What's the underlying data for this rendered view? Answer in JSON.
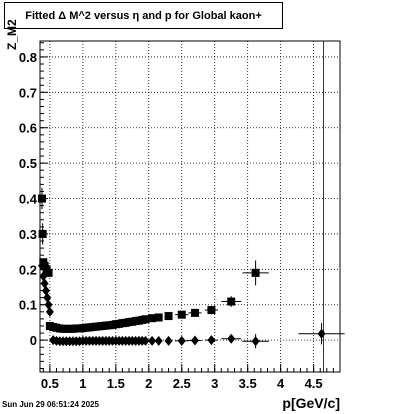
{
  "title": "Fitted Δ M^2 versus η and p for Global kaon+",
  "timestamp": "Sun Jun 29 06:51:24 2025",
  "chart_data": {
    "type": "scatter",
    "title": "Fitted Δ M^2 versus η and p for Global kaon+",
    "xlabel": "p[GeV/c]",
    "ylabel": "Z_M2",
    "xlim": [
      0.35,
      4.9
    ],
    "ylim": [
      -0.09,
      0.845
    ],
    "grid": true,
    "x_ticks": [
      0.5,
      1,
      1.5,
      2,
      2.5,
      3,
      3.5,
      4,
      4.5
    ],
    "x_tick_labels": [
      "0.5",
      "1",
      "1.5",
      "2",
      "2.5",
      "3",
      "3.5",
      "4",
      "4.5"
    ],
    "y_ticks": [
      0,
      0.1,
      0.2,
      0.3,
      0.4,
      0.5,
      0.6,
      0.7,
      0.8
    ],
    "y_tick_labels": [
      "0",
      "0.1",
      "0.2",
      "0.3",
      "0.4",
      "0.5",
      "0.6",
      "0.7",
      "0.8"
    ],
    "series": [
      {
        "marker": "square",
        "points": [
          [
            0.38,
            0.4,
            0.01,
            0.03
          ],
          [
            0.39,
            0.3,
            0.01,
            0.03
          ],
          [
            0.4,
            0.22,
            0.01,
            0.01
          ],
          [
            0.42,
            0.21,
            0.01,
            0.01
          ],
          [
            0.45,
            0.2,
            0.01,
            0.01
          ],
          [
            0.48,
            0.19,
            0.01,
            0.01
          ],
          [
            0.5,
            0.04,
            0.02,
            0.005
          ],
          [
            0.55,
            0.037,
            0.025,
            0.004
          ],
          [
            0.6,
            0.035,
            0.025,
            0.004
          ],
          [
            0.65,
            0.033,
            0.025,
            0.004
          ],
          [
            0.7,
            0.032,
            0.025,
            0.004
          ],
          [
            0.75,
            0.032,
            0.025,
            0.004
          ],
          [
            0.8,
            0.032,
            0.025,
            0.004
          ],
          [
            0.85,
            0.032,
            0.025,
            0.004
          ],
          [
            0.9,
            0.033,
            0.025,
            0.004
          ],
          [
            0.95,
            0.033,
            0.025,
            0.004
          ],
          [
            1.0,
            0.034,
            0.025,
            0.004
          ],
          [
            1.05,
            0.035,
            0.025,
            0.004
          ],
          [
            1.1,
            0.036,
            0.025,
            0.004
          ],
          [
            1.15,
            0.037,
            0.025,
            0.004
          ],
          [
            1.2,
            0.038,
            0.025,
            0.004
          ],
          [
            1.25,
            0.039,
            0.025,
            0.004
          ],
          [
            1.3,
            0.04,
            0.025,
            0.004
          ],
          [
            1.35,
            0.041,
            0.025,
            0.004
          ],
          [
            1.4,
            0.042,
            0.025,
            0.004
          ],
          [
            1.45,
            0.043,
            0.025,
            0.004
          ],
          [
            1.5,
            0.045,
            0.025,
            0.004
          ],
          [
            1.55,
            0.046,
            0.025,
            0.004
          ],
          [
            1.6,
            0.048,
            0.025,
            0.004
          ],
          [
            1.65,
            0.049,
            0.025,
            0.004
          ],
          [
            1.7,
            0.051,
            0.025,
            0.004
          ],
          [
            1.75,
            0.052,
            0.025,
            0.005
          ],
          [
            1.8,
            0.054,
            0.025,
            0.005
          ],
          [
            1.85,
            0.055,
            0.025,
            0.005
          ],
          [
            1.9,
            0.057,
            0.025,
            0.005
          ],
          [
            1.95,
            0.059,
            0.025,
            0.005
          ],
          [
            2.05,
            0.062,
            0.05,
            0.006
          ],
          [
            2.15,
            0.064,
            0.05,
            0.006
          ],
          [
            2.3,
            0.068,
            0.05,
            0.006
          ],
          [
            2.5,
            0.072,
            0.1,
            0.008
          ],
          [
            2.7,
            0.077,
            0.1,
            0.01
          ],
          [
            2.95,
            0.085,
            0.1,
            0.012
          ],
          [
            3.25,
            0.109,
            0.15,
            0.015
          ],
          [
            3.62,
            0.19,
            0.2,
            0.035
          ]
        ]
      },
      {
        "marker": "diamond",
        "points": [
          [
            0.38,
            0.21,
            0.01,
            0.01
          ],
          [
            0.4,
            0.18,
            0.01,
            0.01
          ],
          [
            0.42,
            0.16,
            0.01,
            0.01
          ],
          [
            0.44,
            0.14,
            0.01,
            0.01
          ],
          [
            0.46,
            0.12,
            0.01,
            0.01
          ],
          [
            0.48,
            0.1,
            0.01,
            0.01
          ],
          [
            0.5,
            0.08,
            0.01,
            0.01
          ],
          [
            0.55,
            0.0,
            0.025,
            0.003
          ],
          [
            0.6,
            -0.002,
            0.025,
            0.002
          ],
          [
            0.65,
            -0.003,
            0.025,
            0.002
          ],
          [
            0.7,
            -0.003,
            0.025,
            0.002
          ],
          [
            0.75,
            -0.003,
            0.025,
            0.002
          ],
          [
            0.8,
            -0.003,
            0.025,
            0.002
          ],
          [
            0.85,
            -0.003,
            0.025,
            0.002
          ],
          [
            0.9,
            -0.003,
            0.025,
            0.002
          ],
          [
            0.95,
            -0.003,
            0.025,
            0.002
          ],
          [
            1.0,
            -0.002,
            0.025,
            0.002
          ],
          [
            1.05,
            -0.002,
            0.025,
            0.002
          ],
          [
            1.1,
            -0.002,
            0.025,
            0.002
          ],
          [
            1.15,
            -0.002,
            0.025,
            0.002
          ],
          [
            1.2,
            -0.002,
            0.025,
            0.002
          ],
          [
            1.25,
            -0.002,
            0.025,
            0.002
          ],
          [
            1.3,
            -0.002,
            0.025,
            0.002
          ],
          [
            1.35,
            -0.002,
            0.025,
            0.002
          ],
          [
            1.4,
            -0.002,
            0.025,
            0.002
          ],
          [
            1.45,
            -0.002,
            0.025,
            0.002
          ],
          [
            1.5,
            -0.002,
            0.025,
            0.002
          ],
          [
            1.55,
            -0.002,
            0.025,
            0.002
          ],
          [
            1.6,
            -0.002,
            0.025,
            0.002
          ],
          [
            1.65,
            -0.002,
            0.025,
            0.002
          ],
          [
            1.7,
            -0.002,
            0.025,
            0.002
          ],
          [
            1.75,
            -0.002,
            0.025,
            0.002
          ],
          [
            1.8,
            -0.002,
            0.025,
            0.002
          ],
          [
            1.85,
            -0.002,
            0.025,
            0.002
          ],
          [
            1.9,
            -0.002,
            0.025,
            0.002
          ],
          [
            1.95,
            -0.002,
            0.025,
            0.002
          ],
          [
            2.05,
            -0.002,
            0.05,
            0.002
          ],
          [
            2.15,
            -0.002,
            0.05,
            0.002
          ],
          [
            2.3,
            -0.002,
            0.05,
            0.002
          ],
          [
            2.5,
            -0.002,
            0.1,
            0.003
          ],
          [
            2.7,
            -0.001,
            0.1,
            0.003
          ],
          [
            2.95,
            0.0,
            0.1,
            0.004
          ],
          [
            3.25,
            0.004,
            0.15,
            0.006
          ],
          [
            3.62,
            -0.003,
            0.2,
            0.02
          ],
          [
            4.62,
            0.018,
            0.35,
            0.03
          ]
        ]
      }
    ]
  }
}
